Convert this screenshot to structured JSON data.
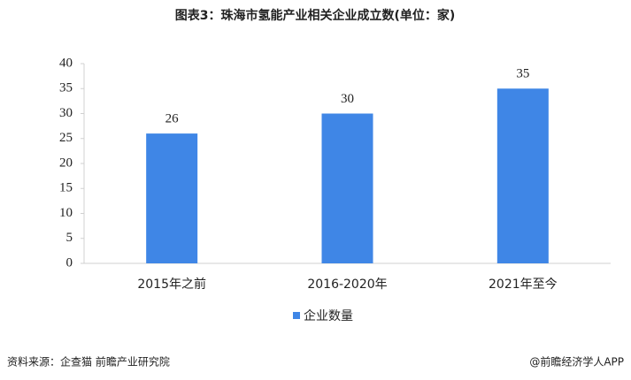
{
  "chart_data": {
    "type": "bar",
    "title": "图表3：珠海市氢能产业相关企业成立数(单位：家)",
    "categories": [
      "2015年之前",
      "2016-2020年",
      "2021年至今"
    ],
    "series": [
      {
        "name": "企业数量",
        "color": "#3f86e6",
        "values": [
          26,
          30,
          35
        ]
      }
    ],
    "ylim": [
      0,
      40
    ],
    "yticks": [
      0,
      5,
      10,
      15,
      20,
      25,
      30,
      35,
      40
    ],
    "legend": "bottom",
    "source": "资料来源：企查猫 前瞻产业研究院",
    "credit": "@前瞻经济学人APP"
  }
}
